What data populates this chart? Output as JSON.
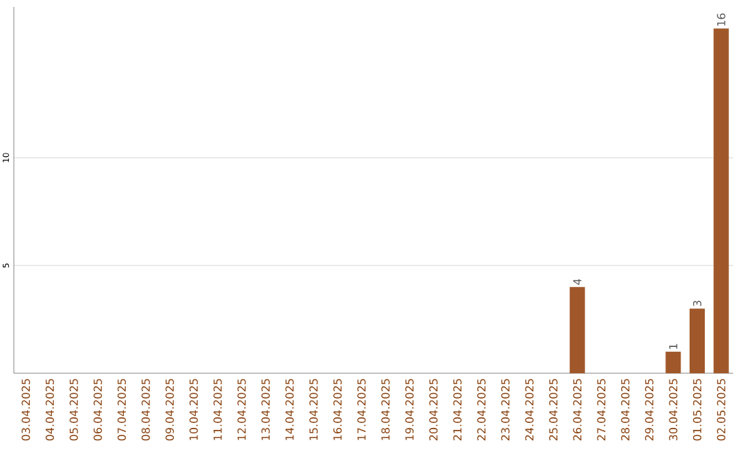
{
  "chart_data": {
    "type": "bar",
    "categories": [
      "03.04.2025",
      "04.04.2025",
      "05.04.2025",
      "06.04.2025",
      "07.04.2025",
      "08.04.2025",
      "09.04.2025",
      "10.04.2025",
      "11.04.2025",
      "12.04.2025",
      "13.04.2025",
      "14.04.2025",
      "15.04.2025",
      "16.04.2025",
      "17.04.2025",
      "18.04.2025",
      "19.04.2025",
      "20.04.2025",
      "21.04.2025",
      "22.04.2025",
      "23.04.2025",
      "24.04.2025",
      "25.04.2025",
      "26.04.2025",
      "27.04.2025",
      "28.04.2025",
      "29.04.2025",
      "30.04.2025",
      "01.05.2025",
      "02.05.2025"
    ],
    "values": [
      0,
      0,
      0,
      0,
      0,
      0,
      0,
      0,
      0,
      0,
      0,
      0,
      0,
      0,
      0,
      0,
      0,
      0,
      0,
      0,
      0,
      0,
      0,
      4,
      0,
      0,
      0,
      1,
      3,
      16
    ],
    "value_labels": [
      null,
      null,
      null,
      null,
      null,
      null,
      null,
      null,
      null,
      null,
      null,
      null,
      null,
      null,
      null,
      null,
      null,
      null,
      null,
      null,
      null,
      null,
      null,
      "4",
      null,
      null,
      null,
      "1",
      "3",
      "16"
    ],
    "color": "#a0582a",
    "ylim": [
      0,
      17
    ],
    "yticks": [
      5,
      10
    ],
    "grid": "y"
  }
}
